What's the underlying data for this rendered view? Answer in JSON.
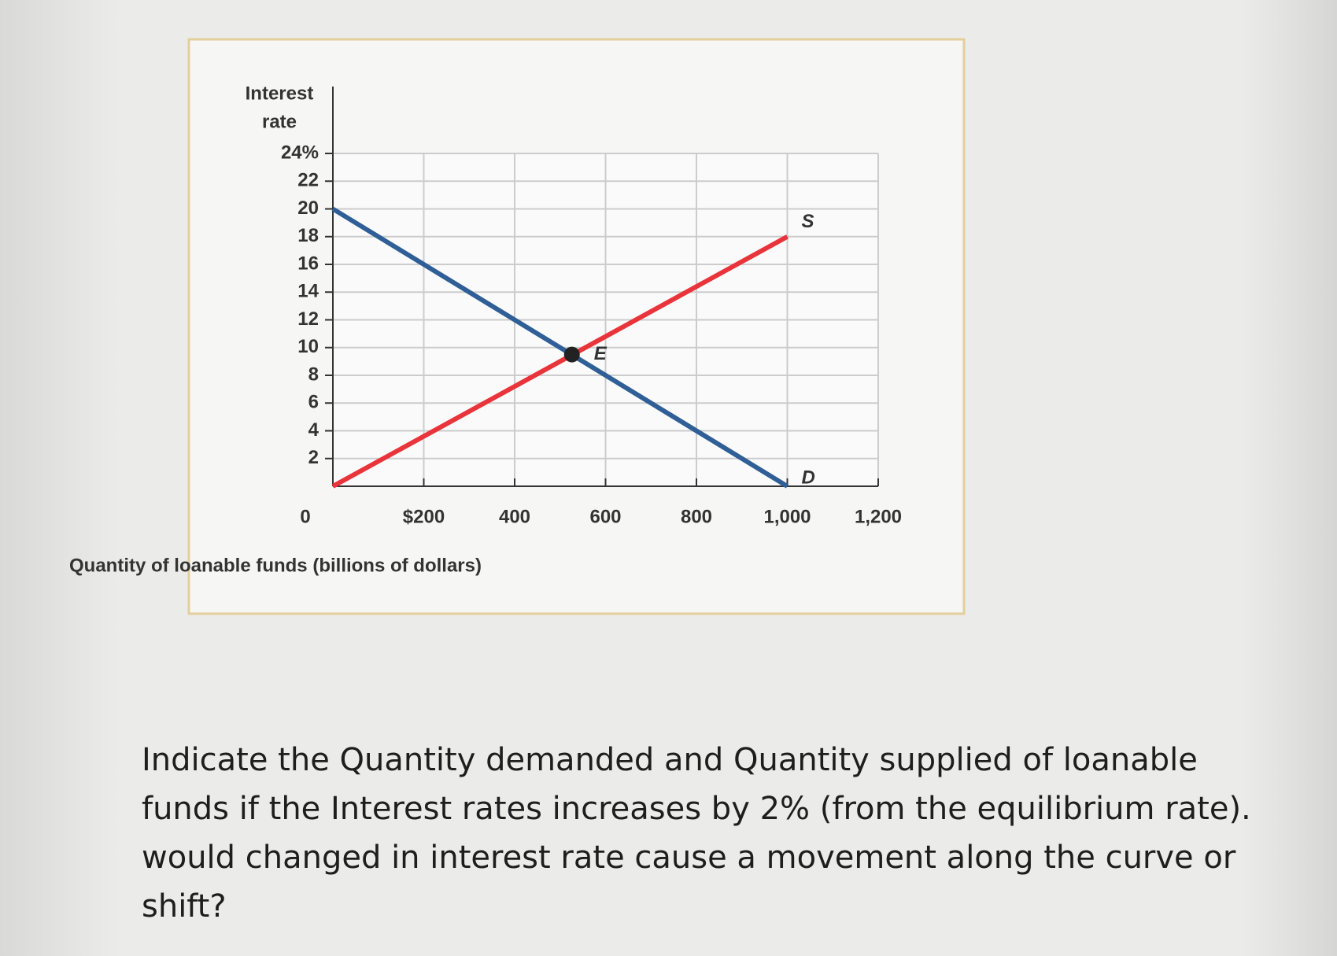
{
  "chart_data": {
    "type": "line",
    "y_label_lines": [
      "Interest",
      "rate"
    ],
    "x_label": "Quantity of loanable funds (billions of dollars)",
    "xlim": [
      0,
      1200
    ],
    "xticks": [
      0,
      {
        "value": 200,
        "label": "$200"
      },
      400,
      600,
      800,
      {
        "value": 1000,
        "label": "1,000"
      },
      {
        "value": 1200,
        "label": "1,200"
      }
    ],
    "ylim": [
      0,
      24
    ],
    "yticks": [
      2,
      4,
      6,
      8,
      10,
      12,
      14,
      16,
      18,
      20,
      22,
      {
        "value": 24,
        "label": "24%"
      }
    ],
    "grid": true,
    "series": [
      {
        "name": "S",
        "color": "#e8343a",
        "x": [
          0,
          1000
        ],
        "values": [
          0,
          18
        ]
      },
      {
        "name": "D",
        "color": "#2f5f96",
        "x": [
          0,
          1000
        ],
        "values": [
          20,
          0
        ]
      }
    ],
    "annotations": [
      {
        "text": "E",
        "x": 526,
        "y": 9.5
      }
    ]
  },
  "question": [
    "Indicate  the Quantity demanded and Quantity supplied of loanable",
    "funds if the Interest rates increases by 2% (from the equilibrium rate).",
    "would changed in interest rate cause a movement along the curve or",
    "shift?"
  ]
}
